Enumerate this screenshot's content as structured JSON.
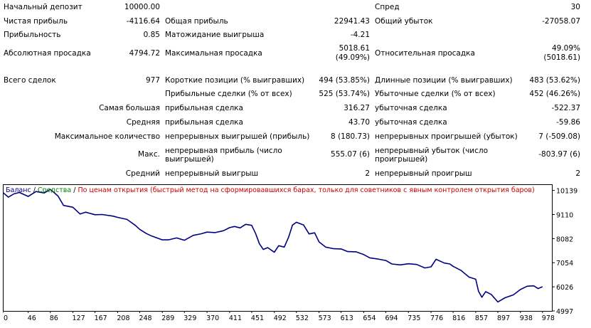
{
  "report": {
    "initial_deposit": {
      "label": "Начальный депозит",
      "value": "10000.00"
    },
    "spread": {
      "label": "Спред",
      "value": "30"
    },
    "net_profit": {
      "label": "Чистая прибыль",
      "value": "-4116.64"
    },
    "gross_profit": {
      "label": "Общая прибыль",
      "value": "22941.43"
    },
    "gross_loss": {
      "label": "Общий убыток",
      "value": "-27058.07"
    },
    "profit_factor": {
      "label": "Прибыльность",
      "value": "0.85"
    },
    "expected_payoff": {
      "label": "Матожидание выигрыша",
      "value": "-4.21"
    },
    "abs_drawdown": {
      "label": "Абсолютная просадка",
      "value": "4794.72"
    },
    "max_drawdown": {
      "label": "Максимальная просадка",
      "value1": "5018.61",
      "value2": "(49.09%)"
    },
    "rel_drawdown": {
      "label": "Относительная просадка",
      "value1": "49.09%",
      "value2": "(5018.61)"
    },
    "total_trades": {
      "label": "Всего сделок",
      "value": "977"
    },
    "short_positions": {
      "label": "Короткие позиции (% выигравших)",
      "value": "494 (53.85%)"
    },
    "long_positions": {
      "label": "Длинные позиции (% выигравших)",
      "value": "483 (53.62%)"
    },
    "profit_trades": {
      "label": "Прибыльные сделки (% от всех)",
      "value": "525 (53.74%)"
    },
    "loss_trades": {
      "label": "Убыточные сделки (% от всех)",
      "value": "452 (46.26%)"
    },
    "largest": {
      "label": "Самая большая",
      "profit_label": "прибыльная сделка",
      "profit_value": "316.27",
      "loss_label": "убыточная сделка",
      "loss_value": "-522.37"
    },
    "average": {
      "label": "Средняя",
      "profit_label": "прибыльная сделка",
      "profit_value": "43.70",
      "loss_label": "убыточная сделка",
      "loss_value": "-59.86"
    },
    "max_count": {
      "label": "Максимальное количество",
      "profit_label": "непрерывных выигрышей (прибыль)",
      "profit_value": "8 (180.73)",
      "loss_label": "непрерывных проигрышей (убыток)",
      "loss_value": "7 (-509.08)"
    },
    "max_amount": {
      "label": "Макс.",
      "profit_label": "непрерывная прибыль (число выигрышей)",
      "profit_value": "555.07 (6)",
      "loss_label": "непрерывный убыток (число проигрышей)",
      "loss_value": "-803.97 (6)"
    },
    "avg_consec": {
      "label": "Средний",
      "profit_label": "непрерывный выигрыш",
      "profit_value": "2",
      "loss_label": "непрерывный проигрыш",
      "loss_value": "2"
    }
  },
  "chart_legend": {
    "balance": "Баланс",
    "sep": " / ",
    "equity": "Средства",
    "mode": "По ценам открытия (быстрый метод на сформировавшихся барах, только для советников с явным контролем открытия баров)"
  },
  "colors": {
    "balance_line": "#000080",
    "equity_label": "#008000",
    "mode_label": "#cc0000"
  },
  "chart_data": {
    "type": "line",
    "title": "",
    "xlabel": "",
    "ylabel": "",
    "x_ticks": [
      0,
      46,
      86,
      127,
      167,
      208,
      248,
      289,
      329,
      370,
      411,
      451,
      492,
      532,
      573,
      613,
      654,
      694,
      735,
      776,
      816,
      857,
      897,
      938,
      978
    ],
    "y_ticks": [
      4997,
      6026,
      7054,
      8082,
      9110,
      10139
    ],
    "xlim": [
      0,
      995
    ],
    "ylim": [
      4997,
      10400
    ],
    "grid": false,
    "series": [
      {
        "name": "Баланс",
        "x": [
          0,
          10,
          20,
          30,
          46,
          60,
          75,
          86,
          100,
          110,
          127,
          140,
          150,
          167,
          180,
          200,
          208,
          225,
          240,
          248,
          260,
          270,
          289,
          300,
          315,
          329,
          345,
          360,
          370,
          385,
          400,
          411,
          420,
          430,
          440,
          451,
          458,
          465,
          472,
          480,
          492,
          500,
          510,
          518,
          525,
          532,
          545,
          555,
          565,
          573,
          585,
          600,
          613,
          625,
          640,
          654,
          665,
          680,
          694,
          705,
          720,
          735,
          750,
          765,
          776,
          785,
          800,
          810,
          816,
          830,
          845,
          857,
          862,
          868,
          875,
          885,
          897,
          910,
          925,
          938,
          950,
          962,
          970,
          978
        ],
        "values": [
          10050,
          9850,
          9990,
          10050,
          9880,
          10090,
          10030,
          10180,
          9900,
          9500,
          9420,
          9130,
          9210,
          9100,
          9110,
          9040,
          8990,
          8900,
          8650,
          8480,
          8300,
          8190,
          8030,
          8030,
          8110,
          8010,
          8220,
          8290,
          8360,
          8340,
          8420,
          8550,
          8600,
          8540,
          8690,
          8650,
          8300,
          7860,
          7620,
          7700,
          7500,
          7780,
          7720,
          8150,
          8660,
          8780,
          8660,
          8280,
          8330,
          7940,
          7720,
          7650,
          7640,
          7530,
          7520,
          7400,
          7260,
          7210,
          7150,
          7000,
          6960,
          7010,
          6980,
          6830,
          6880,
          7200,
          7040,
          7000,
          6900,
          6730,
          6440,
          6350,
          5840,
          5580,
          5820,
          5700,
          5380,
          5560,
          5680,
          5910,
          6050,
          6070,
          5950,
          6030
        ]
      }
    ]
  }
}
